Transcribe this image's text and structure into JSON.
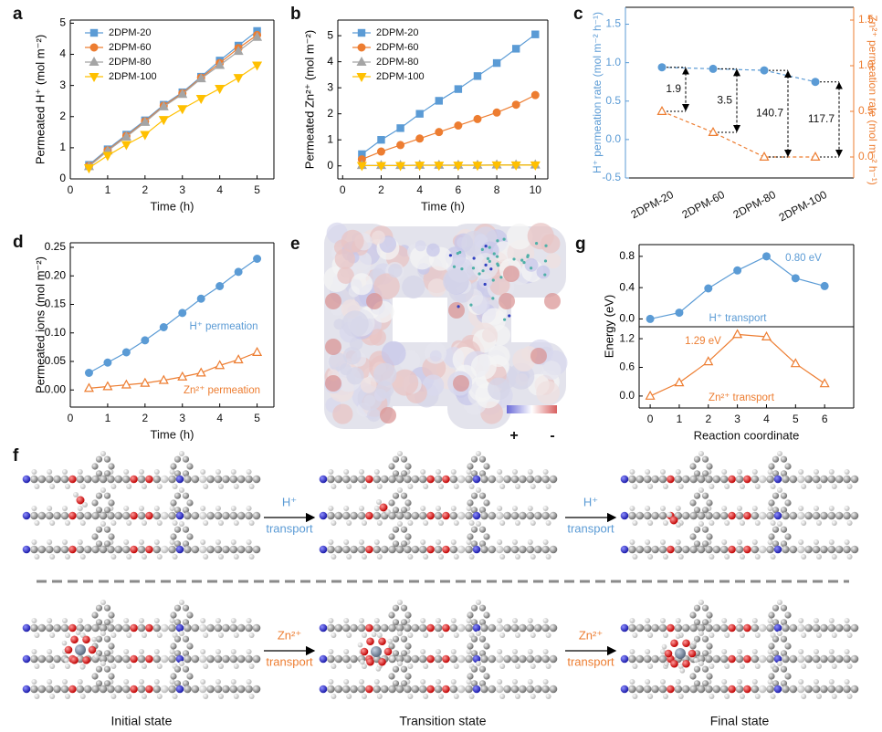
{
  "chart_data": [
    {
      "panel_label": "a",
      "type": "line",
      "x": [
        0.5,
        1,
        1.5,
        2,
        2.5,
        3,
        3.5,
        4,
        4.5,
        5
      ],
      "xlim": [
        0,
        5.45
      ],
      "xticks": [
        0,
        1,
        2,
        3,
        4,
        5
      ],
      "ylim": [
        0,
        5.1
      ],
      "yticks": [
        0,
        1,
        2,
        3,
        4,
        5
      ],
      "xlabel": "Time (h)",
      "ylabel": "Permeated H⁺ (mol m⁻²)",
      "legend": "upper left",
      "series": [
        {
          "name": "2DPM-20",
          "color": "#5b9bd5",
          "marker": "square",
          "values": [
            0.45,
            0.95,
            1.42,
            1.88,
            2.38,
            2.78,
            3.28,
            3.8,
            4.28,
            4.75
          ]
        },
        {
          "name": "2DPM-60",
          "color": "#ed7d31",
          "marker": "circle",
          "values": [
            0.42,
            0.92,
            1.38,
            1.85,
            2.35,
            2.75,
            3.25,
            3.72,
            4.2,
            4.62
          ]
        },
        {
          "name": "2DPM-80",
          "color": "#a5a5a5",
          "marker": "triangle",
          "values": [
            0.4,
            0.9,
            1.35,
            1.82,
            2.32,
            2.72,
            3.22,
            3.65,
            4.1,
            4.55
          ]
        },
        {
          "name": "2DPM-100",
          "color": "#ffc000",
          "marker": "triangle-down",
          "values": [
            0.35,
            0.75,
            1.1,
            1.42,
            1.9,
            2.25,
            2.58,
            2.9,
            3.25,
            3.65
          ]
        }
      ]
    },
    {
      "panel_label": "b",
      "type": "line",
      "x": [
        1,
        2,
        3,
        4,
        5,
        6,
        7,
        8,
        9,
        10
      ],
      "xlim": [
        -0.25,
        10.65
      ],
      "xticks": [
        0,
        2,
        4,
        6,
        8,
        10
      ],
      "ylim": [
        -0.5,
        5.6
      ],
      "yticks": [
        0,
        1,
        2,
        3,
        4,
        5
      ],
      "xlabel": "Time (h)",
      "ylabel": "Permeated Zn²⁺ (mol m⁻²)",
      "legend": "upper left",
      "series": [
        {
          "name": "2DPM-20",
          "color": "#5b9bd5",
          "marker": "square",
          "values": [
            0.45,
            1.0,
            1.45,
            2.0,
            2.5,
            2.95,
            3.45,
            3.95,
            4.5,
            5.05
          ]
        },
        {
          "name": "2DPM-60",
          "color": "#ed7d31",
          "marker": "circle",
          "values": [
            0.25,
            0.55,
            0.8,
            1.05,
            1.3,
            1.55,
            1.8,
            2.05,
            2.35,
            2.72
          ]
        },
        {
          "name": "2DPM-80",
          "color": "#a5a5a5",
          "marker": "triangle",
          "values": [
            0.02,
            0.02,
            0.02,
            0.03,
            0.03,
            0.03,
            0.03,
            0.04,
            0.04,
            0.04
          ]
        },
        {
          "name": "2DPM-100",
          "color": "#ffc000",
          "marker": "triangle-down",
          "values": [
            0.01,
            0.01,
            0.01,
            0.02,
            0.02,
            0.02,
            0.02,
            0.03,
            0.03,
            0.03
          ]
        }
      ]
    },
    {
      "panel_label": "c",
      "type": "line",
      "categories": [
        "2DPM-20",
        "2DPM-60",
        "2DPM-80",
        "2DPM-100"
      ],
      "ylim": [
        -0.5,
        1.72
      ],
      "yticks": [
        -0.5,
        {
          "value": 0,
          "label": "0.0"
        },
        0.5,
        {
          "value": 1,
          "label": "1.0"
        },
        1.5
      ],
      "y2lim": [
        -0.23,
        1.64
      ],
      "y2ticks": [
        {
          "value": 0,
          "label": "0.0"
        },
        0.5,
        {
          "value": 1,
          "label": "1.0"
        },
        1.5
      ],
      "ylabel": "H⁺ permeation rate (mol m⁻² h⁻¹)",
      "y2label": "Zn²⁺ permeation rate (mol m⁻² h⁻¹)",
      "y_color": "#5b9bd5",
      "y2_color": "#ed7d31",
      "series": [
        {
          "color": "#5b9bd5",
          "marker": "circle",
          "line_style": "dashed",
          "values": [
            0.94,
            0.92,
            0.9,
            0.75
          ]
        },
        {
          "color": "#ed7d31",
          "marker": "triangle",
          "fill": "open",
          "line_style": "dashed",
          "axis": "y2",
          "values": [
            0.5,
            0.27,
            0.0,
            0.0
          ]
        }
      ],
      "ratios": [
        1.9,
        3.5,
        140.7,
        117.7
      ]
    },
    {
      "panel_label": "d",
      "type": "line",
      "x": [
        0.5,
        1,
        1.5,
        2,
        2.5,
        3,
        3.5,
        4,
        4.5,
        5
      ],
      "xlim": [
        0,
        5.45
      ],
      "xticks": [
        0,
        1,
        2,
        3,
        4,
        5
      ],
      "ylim": [
        -0.03,
        0.258
      ],
      "yticks": [
        {
          "value": 0,
          "label": "0.00"
        },
        0.05,
        {
          "value": 0.1,
          "label": "0.10"
        },
        0.15,
        {
          "value": 0.2,
          "label": "0.20"
        },
        0.25
      ],
      "xlabel": "Time (h)",
      "ylabel": "Permeated ions (mol m⁻²)",
      "series": [
        {
          "color": "#5b9bd5",
          "marker": "circle",
          "values": [
            0.03,
            0.048,
            0.066,
            0.087,
            0.11,
            0.135,
            0.16,
            0.182,
            0.207,
            0.23
          ]
        },
        {
          "color": "#ed7d31",
          "marker": "triangle",
          "fill": "open",
          "values": [
            0.003,
            0.006,
            0.009,
            0.012,
            0.017,
            0.023,
            0.03,
            0.043,
            0.053,
            0.066
          ]
        }
      ],
      "annotations": [
        "H⁺ permeation",
        "Zn²⁺ permeation"
      ]
    },
    {
      "panel_label": "g",
      "type": "line",
      "stacked": true,
      "x": [
        0,
        1,
        2,
        3,
        4,
        5,
        6
      ],
      "xlim": [
        -0.38,
        7
      ],
      "xticks": [
        0,
        1,
        2,
        3,
        4,
        5,
        6
      ],
      "ylim": [
        -0.1,
        0.95
      ],
      "yticks": [
        {
          "value": 0,
          "label": "0.0"
        },
        0.4,
        0.8
      ],
      "y2lim": [
        -0.25,
        1.45
      ],
      "y2ticks": [
        {
          "value": 0,
          "label": "0.0"
        },
        0.6,
        1.2
      ],
      "xlabel": "Reaction coordinate",
      "ylabel": "Energy (eV)",
      "series": [
        {
          "color": "#5b9bd5",
          "marker": "circle",
          "values": [
            0,
            0.08,
            0.39,
            0.62,
            0.8,
            0.52,
            0.42
          ]
        },
        {
          "color": "#ed7d31",
          "marker": "triangle",
          "fill": "open",
          "axis": "y2",
          "values": [
            0,
            0.28,
            0.72,
            1.29,
            1.24,
            0.68,
            0.26
          ]
        }
      ],
      "annotations": [
        "0.80 eV",
        "H⁺ transport",
        "1.29 eV",
        "Zn²⁺ transport"
      ]
    }
  ],
  "panel_e": {
    "label": "e",
    "colorbar_labels": [
      "+",
      "-"
    ]
  },
  "panel_f": {
    "label": "f",
    "steps": [
      {
        "ion": "H⁺",
        "text": "transport"
      },
      {
        "ion": "H⁺",
        "text": "transport"
      },
      {
        "ion": "Zn²⁺",
        "text": "transport"
      },
      {
        "ion": "Zn²⁺",
        "text": "transport"
      }
    ],
    "states": [
      "Initial state",
      "Transition state",
      "Final state"
    ]
  }
}
